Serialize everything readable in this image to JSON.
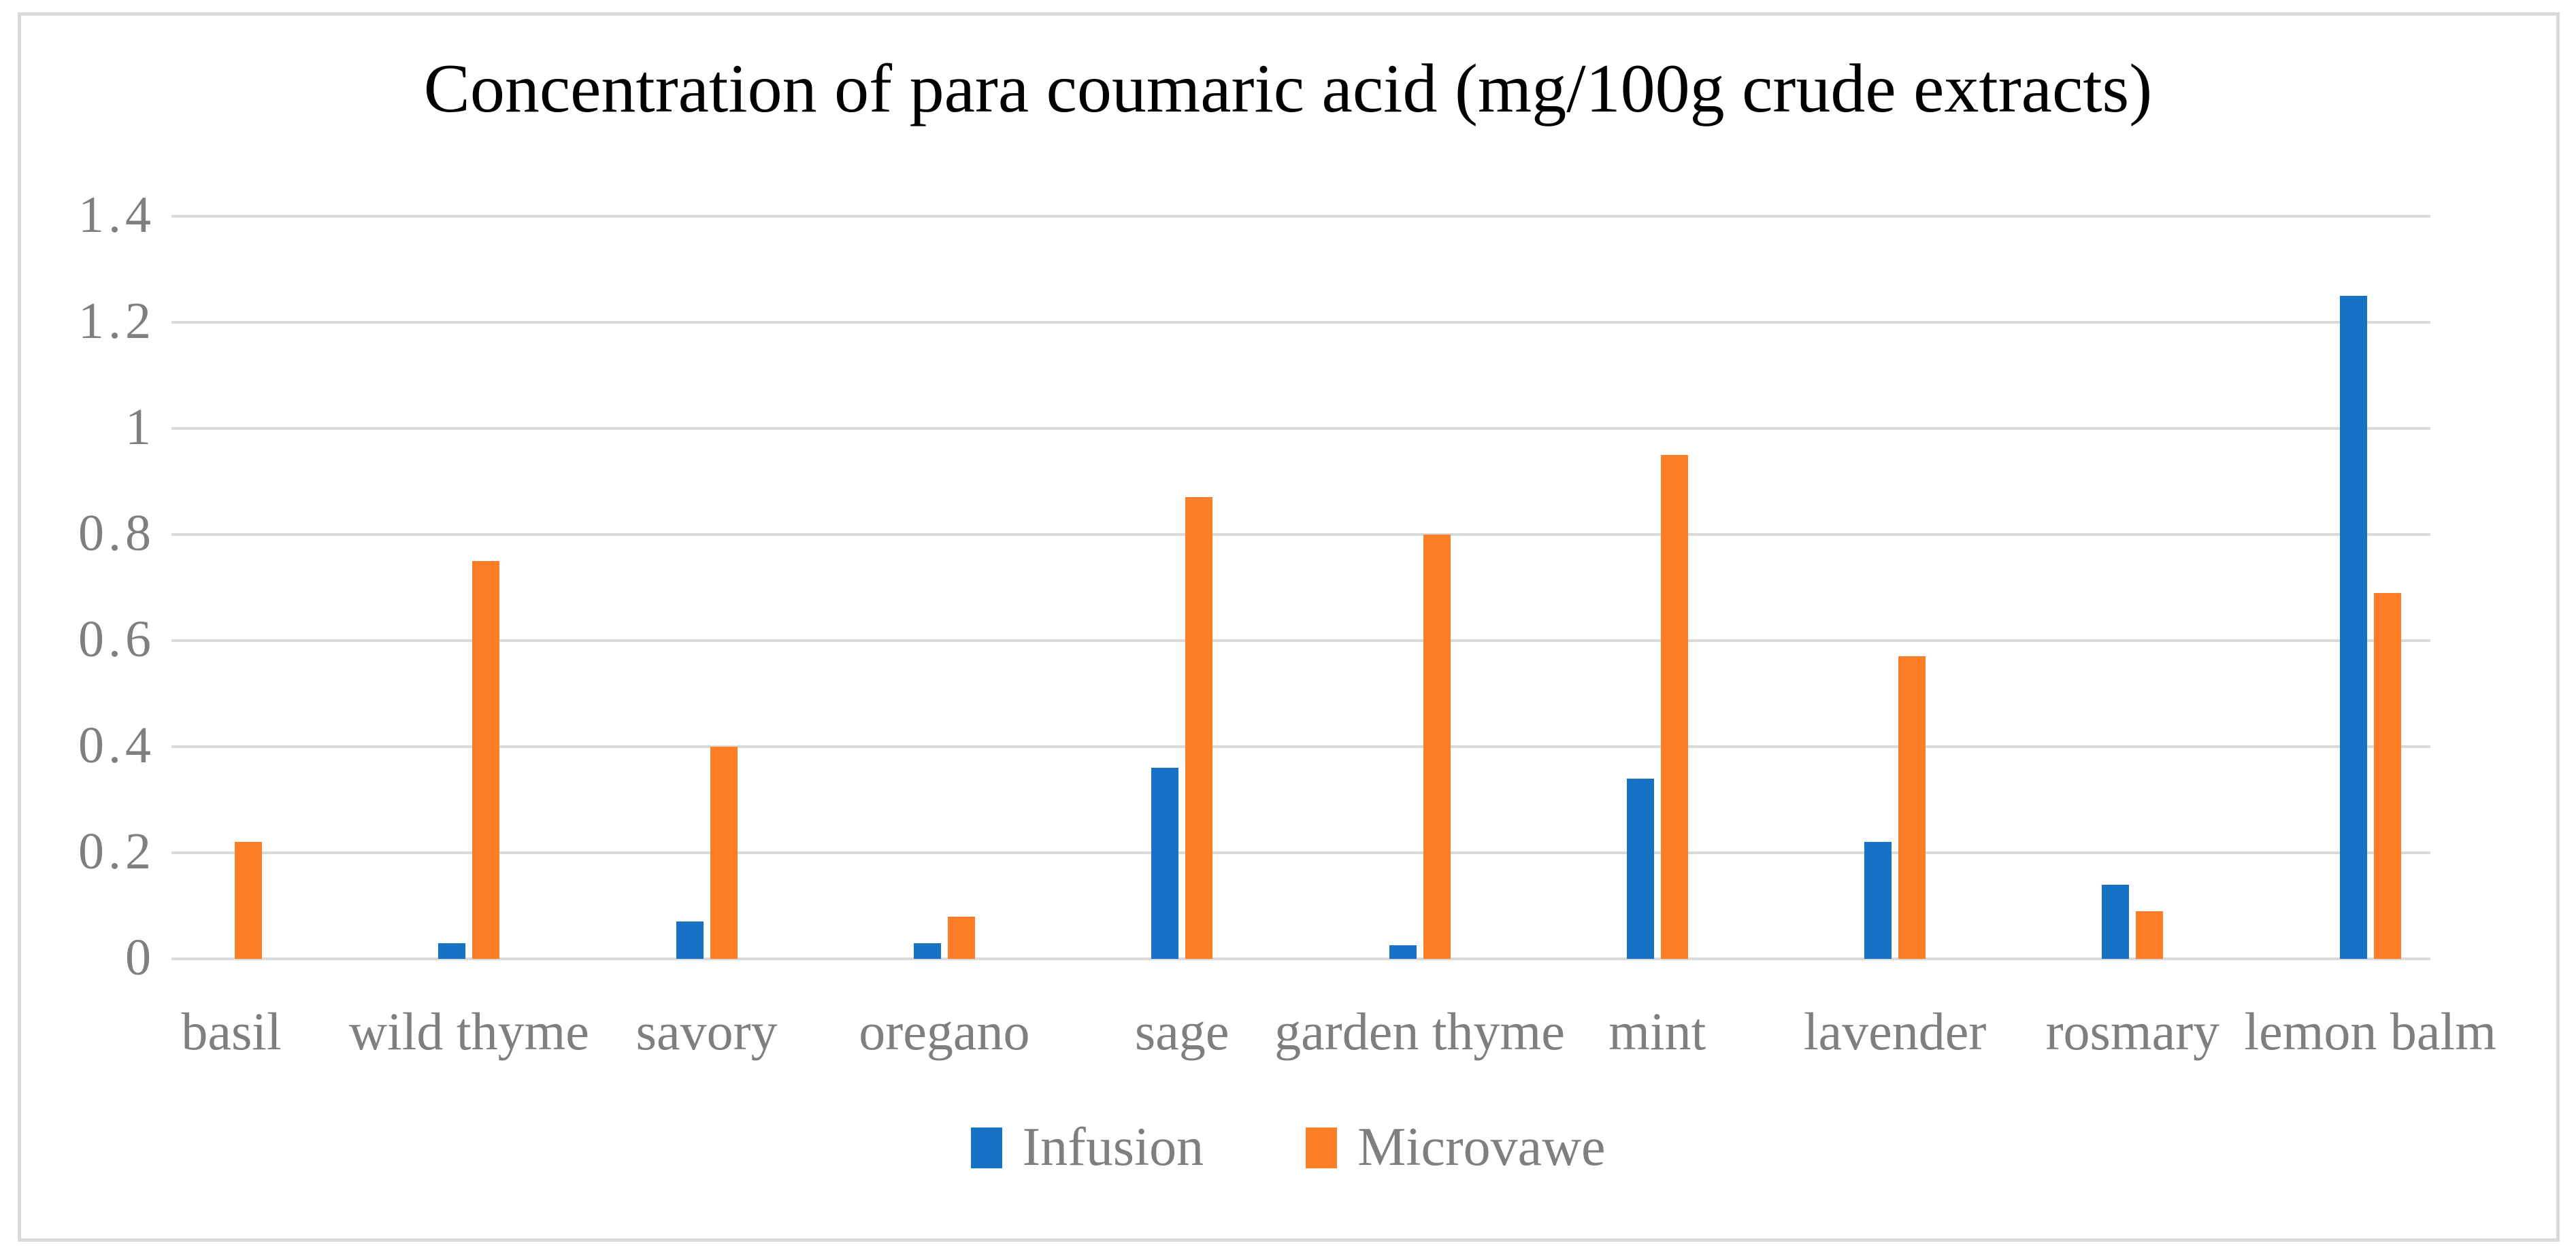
{
  "figure": {
    "title": "Concentration of para coumaric acid (mg/100g crude extracts)"
  },
  "colors": {
    "infusion_blue": "#1772C6",
    "microvawe_orange": "#FD7E26",
    "gridline_gray": "#D9D9D9",
    "axis_text_gray": "#7F7F7F",
    "title_black": "#000000",
    "frame_gray": "#D9D9D9"
  },
  "chart_data": {
    "type": "bar",
    "title": "Concentration of para coumaric acid (mg/100g crude extracts)",
    "categories": [
      "basil",
      "wild thyme",
      "savory",
      "oregano",
      "sage",
      "garden thyme",
      "mint",
      "lavender",
      "rosmary",
      "lemon balm"
    ],
    "series": [
      {
        "name": "Infusion",
        "color": "#1772C6",
        "values": [
          0,
          0.03,
          0.07,
          0.03,
          0.36,
          0.025,
          0.34,
          0.22,
          0.14,
          1.25
        ]
      },
      {
        "name": "Microvawe",
        "color": "#FD7E26",
        "values": [
          0.22,
          0.75,
          0.4,
          0.08,
          0.87,
          0.8,
          0.95,
          0.57,
          0.09,
          0.69
        ]
      }
    ],
    "xlabel": "",
    "ylabel": "",
    "ylim": [
      0,
      1.4
    ],
    "yticks": [
      0,
      0.2,
      0.4,
      0.6,
      0.8,
      1,
      1.2,
      1.4
    ],
    "ytick_labels": [
      "0",
      "0.2",
      "0.4",
      "0.6",
      "0.8",
      "1",
      "1.2",
      "1.4"
    ],
    "grid": true,
    "legend_position": "bottom"
  }
}
